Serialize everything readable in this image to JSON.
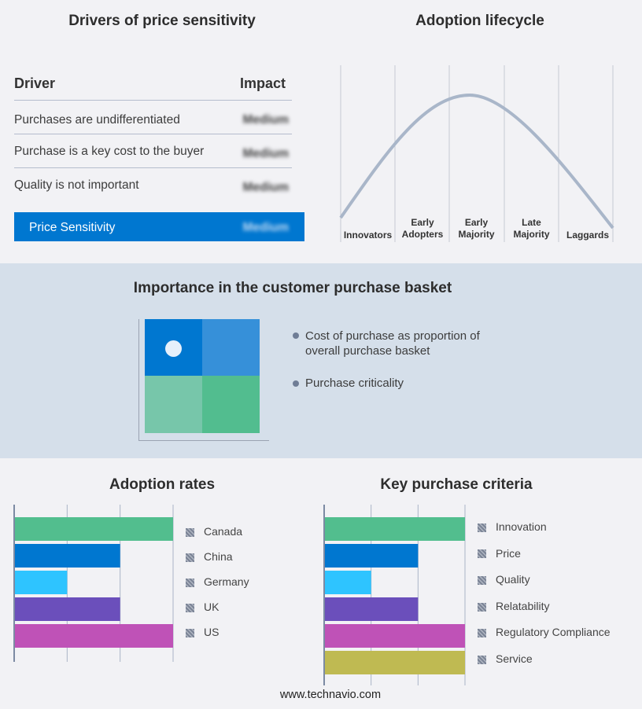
{
  "drivers": {
    "title": "Drivers of price sensitivity",
    "col_driver": "Driver",
    "col_impact": "Impact",
    "rows": [
      {
        "driver": "Purchases are undifferentiated",
        "impact": "Medium"
      },
      {
        "driver": "Purchase is a key cost to the buyer",
        "impact": "Medium"
      },
      {
        "driver": "Quality is not important",
        "impact": "Medium"
      }
    ],
    "summary": {
      "label": "Price Sensitivity",
      "impact": "Medium"
    },
    "accent": "#0077d0"
  },
  "lifecycle": {
    "title": "Adoption lifecycle",
    "stages": [
      [
        "Innovators"
      ],
      [
        "Early",
        "Adopters"
      ],
      [
        "Early",
        "Majority"
      ],
      [
        "Late",
        "Majority"
      ],
      [
        "Laggards"
      ]
    ],
    "curve_color": "#a9b6c9"
  },
  "basket": {
    "title": "Importance in the customer purchase basket",
    "legend": [
      "Cost of purchase as proportion of overall purchase basket",
      "Purchase criticality"
    ],
    "colors": {
      "top_left": "#0077d0",
      "top_right": "#3690d9",
      "bottom_left": "#77c6aa",
      "bottom_right": "#52bd8f"
    }
  },
  "chart_data": [
    {
      "type": "bar",
      "orientation": "horizontal",
      "title": "Adoption rates",
      "categories": [
        "Canada",
        "China",
        "Germany",
        "UK",
        "US"
      ],
      "values": [
        3,
        2,
        1,
        2,
        3
      ],
      "xlim": [
        0,
        3
      ],
      "grid": true,
      "legend": "right",
      "colors": [
        "#52be8e",
        "#0077d0",
        "#2ec4ff",
        "#6b4fbb",
        "#bf52b7"
      ]
    },
    {
      "type": "bar",
      "orientation": "horizontal",
      "title": "Key purchase criteria",
      "categories": [
        "Innovation",
        "Price",
        "Quality",
        "Relatability",
        "Regulatory Compliance",
        "Service"
      ],
      "values": [
        3,
        2,
        1,
        2,
        3,
        3
      ],
      "xlim": [
        0,
        3
      ],
      "grid": true,
      "legend": "right",
      "colors": [
        "#52be8e",
        "#0077d0",
        "#2ec4ff",
        "#6b4fbb",
        "#bf52b7",
        "#bfba52"
      ]
    }
  ],
  "footer": {
    "site": "www.technavio.com"
  }
}
